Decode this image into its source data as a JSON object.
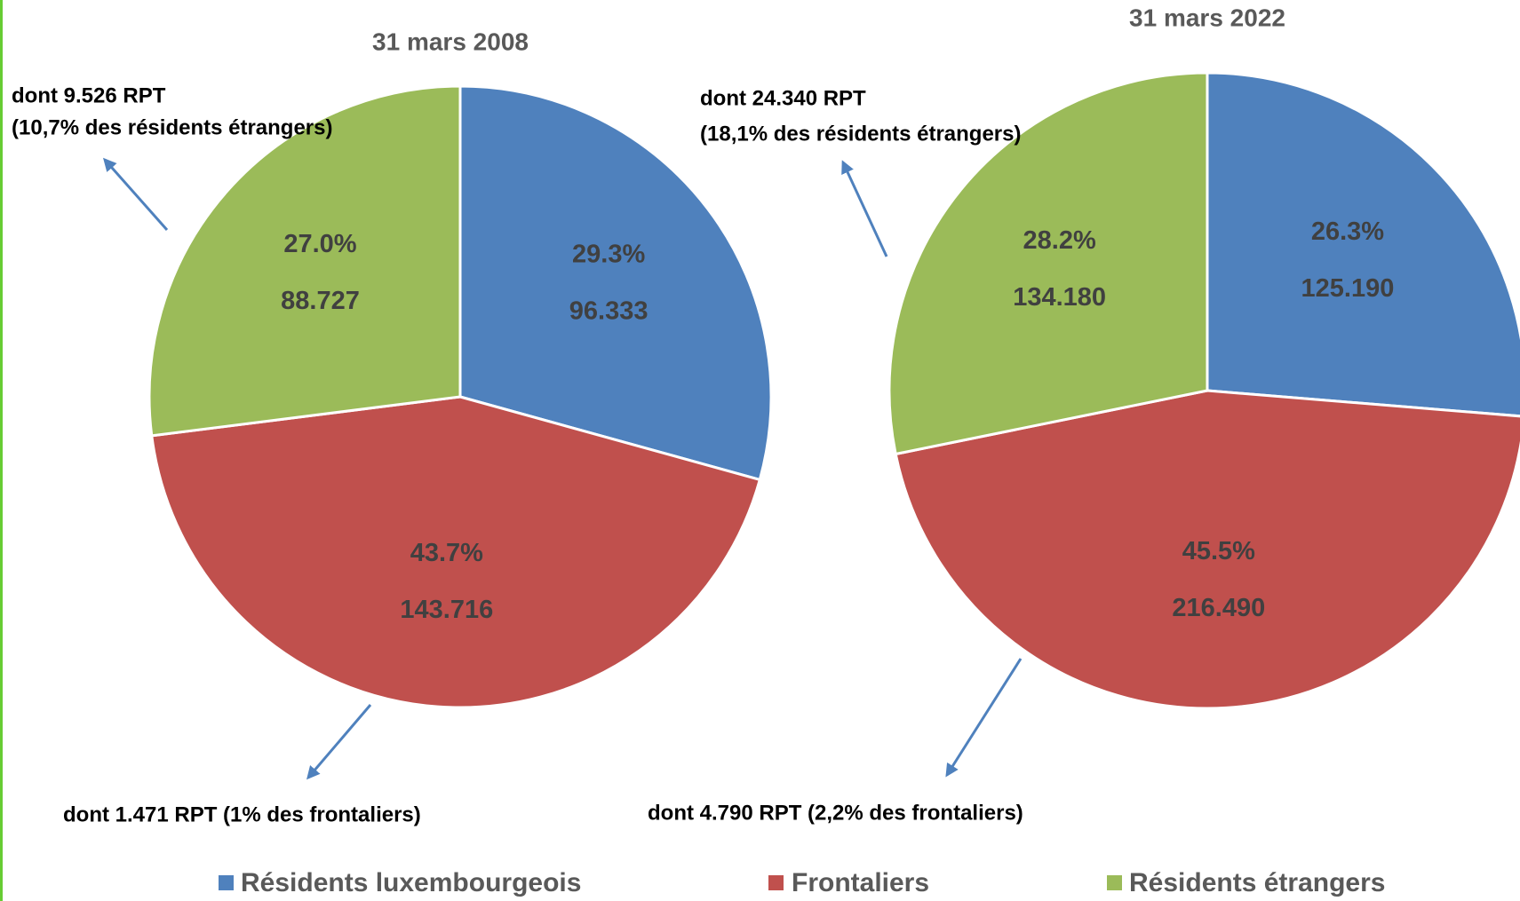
{
  "legend": {
    "names": [
      "Résidents luxembourgeois",
      "Frontaliers",
      "Résidents étrangers"
    ],
    "colors": [
      "#4f81bd",
      "#c0504d",
      "#9bbb59"
    ]
  },
  "chart_data": [
    {
      "type": "pie",
      "title": "31 mars 2008",
      "values": [
        29.3,
        43.7,
        27.0
      ],
      "value_labels": [
        "29.3%",
        "43.7%",
        "27.0%"
      ],
      "counts": [
        96333,
        143716,
        88727
      ],
      "count_labels": [
        "96.333",
        "143.716",
        "88.727"
      ],
      "annotations": [
        "dont 9.526 RPT",
        "(10,7% des résidents étrangers)",
        "dont 1.471 RPT (1% des frontaliers)"
      ]
    },
    {
      "type": "pie",
      "title": "31 mars 2022",
      "values": [
        26.3,
        45.5,
        28.2
      ],
      "value_labels": [
        "26.3%",
        "45.5%",
        "28.2%"
      ],
      "counts": [
        125190,
        216490,
        134180
      ],
      "count_labels": [
        "125.190",
        "216.490",
        "134.180"
      ],
      "annotations": [
        "dont 24.340 RPT",
        "(18,1% des résidents étrangers)",
        "dont 4.790 RPT (2,2% des frontaliers)"
      ]
    }
  ]
}
